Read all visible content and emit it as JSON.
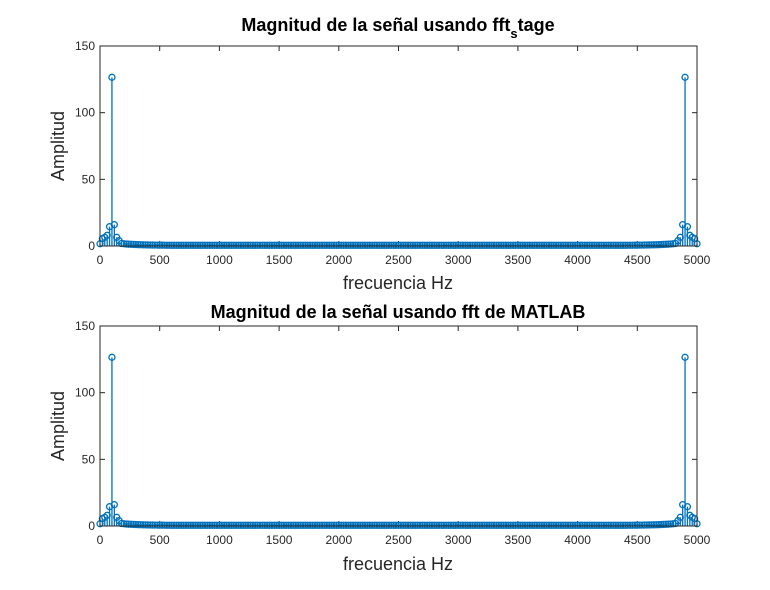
{
  "chart_data": [
    {
      "type": "stem",
      "title_main": "Magnitud de la señal usando fft",
      "title_sub": "s",
      "title_suffix": "tage",
      "xlabel": "frecuencia Hz",
      "ylabel": "Amplitud",
      "xlim": [
        0,
        5000
      ],
      "ylim": [
        0,
        150
      ],
      "xticks": [
        "0",
        "500",
        "1000",
        "1500",
        "2000",
        "2500",
        "3000",
        "3500",
        "4000",
        "4500",
        "5000"
      ],
      "yticks": [
        "0",
        "50",
        "100",
        "150"
      ],
      "color": "#0072BD",
      "sample_spacing": 20,
      "peaks": [
        {
          "x": 20,
          "y": 5.5
        },
        {
          "x": 40,
          "y": 6.5
        },
        {
          "x": 60,
          "y": 8
        },
        {
          "x": 80,
          "y": 14.5
        },
        {
          "x": 100,
          "y": 126.5
        },
        {
          "x": 120,
          "y": 16
        },
        {
          "x": 140,
          "y": 6.5
        },
        {
          "x": 160,
          "y": 4
        },
        {
          "x": 4840,
          "y": 4
        },
        {
          "x": 4860,
          "y": 6.5
        },
        {
          "x": 4880,
          "y": 16
        },
        {
          "x": 4900,
          "y": 126.5
        },
        {
          "x": 4920,
          "y": 14.5
        },
        {
          "x": 4940,
          "y": 8
        },
        {
          "x": 4960,
          "y": 6.5
        },
        {
          "x": 4980,
          "y": 5.5
        }
      ]
    },
    {
      "type": "stem",
      "title": "Magnitud de la señal usando fft de MATLAB",
      "xlabel": "frecuencia Hz",
      "ylabel": "Amplitud",
      "xlim": [
        0,
        5000
      ],
      "ylim": [
        0,
        150
      ],
      "xticks": [
        "0",
        "500",
        "1000",
        "1500",
        "2000",
        "2500",
        "3000",
        "3500",
        "4000",
        "4500",
        "5000"
      ],
      "yticks": [
        "0",
        "50",
        "100",
        "150"
      ],
      "color": "#0072BD",
      "sample_spacing": 20,
      "peaks": [
        {
          "x": 20,
          "y": 5.5
        },
        {
          "x": 40,
          "y": 6.5
        },
        {
          "x": 60,
          "y": 8
        },
        {
          "x": 80,
          "y": 14.5
        },
        {
          "x": 100,
          "y": 126.5
        },
        {
          "x": 120,
          "y": 16
        },
        {
          "x": 140,
          "y": 6.5
        },
        {
          "x": 160,
          "y": 4
        },
        {
          "x": 4840,
          "y": 4
        },
        {
          "x": 4860,
          "y": 6.5
        },
        {
          "x": 4880,
          "y": 16
        },
        {
          "x": 4900,
          "y": 126.5
        },
        {
          "x": 4920,
          "y": 14.5
        },
        {
          "x": 4940,
          "y": 8
        },
        {
          "x": 4960,
          "y": 6.5
        },
        {
          "x": 4980,
          "y": 5.5
        }
      ]
    }
  ]
}
